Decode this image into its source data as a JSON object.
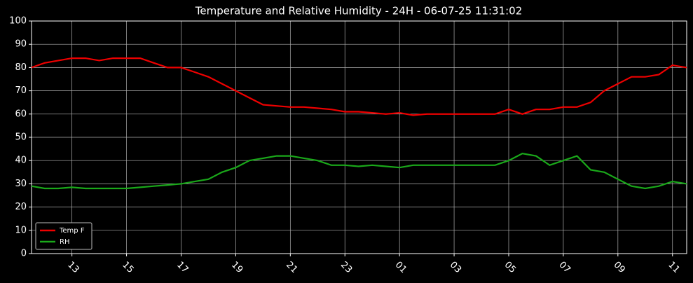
{
  "chart_data": {
    "type": "line",
    "title": "Temperature and Relative Humidity - 24H - 06-07-25 11:31:02",
    "x": [
      11.52,
      12,
      12.5,
      13,
      13.5,
      14,
      14.5,
      15,
      15.5,
      16,
      16.5,
      17,
      17.5,
      18,
      18.5,
      19,
      19.5,
      20,
      20.5,
      21,
      21.5,
      22,
      22.5,
      23,
      23.5,
      24,
      24.5,
      25,
      25.5,
      26,
      26.5,
      27,
      27.5,
      28,
      28.5,
      29,
      29.5,
      30,
      30.5,
      31,
      31.5,
      32,
      32.5,
      33,
      33.5,
      34,
      34.5,
      35,
      35.52
    ],
    "series": [
      {
        "name": "Temp F",
        "color": "#ee0000",
        "values": [
          80,
          82,
          83,
          84,
          84,
          83,
          84,
          84,
          84,
          82,
          80,
          80,
          78,
          76,
          73,
          70,
          67,
          64,
          63.5,
          63,
          63,
          62.5,
          62,
          61,
          61,
          60.5,
          60,
          60.5,
          59.5,
          60,
          60,
          60,
          60,
          60,
          60,
          62,
          60,
          62,
          62,
          63,
          63,
          65,
          70,
          73,
          76,
          76,
          77,
          81,
          80
        ]
      },
      {
        "name": "RH",
        "color": "#1aa81a",
        "values": [
          29,
          28,
          28,
          28.5,
          28,
          28,
          28,
          28,
          28.5,
          29,
          29.5,
          30,
          31,
          32,
          35,
          37,
          40,
          41,
          42,
          42,
          41,
          40,
          38,
          38,
          37.5,
          38,
          37.5,
          37,
          38,
          38,
          38,
          38,
          38,
          38,
          38,
          40,
          43,
          42,
          38,
          40,
          42,
          36,
          35,
          32,
          29,
          28,
          29,
          31,
          30
        ]
      }
    ],
    "xlim": [
      11.52,
      35.52
    ],
    "xticks": [
      13,
      15,
      17,
      19,
      21,
      23,
      {
        "value": 25,
        "label": "01"
      },
      {
        "value": 27,
        "label": "03"
      },
      {
        "value": 29,
        "label": "05"
      },
      {
        "value": 31,
        "label": "07"
      },
      {
        "value": 33,
        "label": "09"
      },
      {
        "value": 35,
        "label": "11"
      }
    ],
    "ylim": [
      0,
      100
    ],
    "yticks": [
      0,
      10,
      20,
      30,
      40,
      50,
      60,
      70,
      80,
      90,
      100
    ],
    "grid": true,
    "legend": "lower left"
  }
}
